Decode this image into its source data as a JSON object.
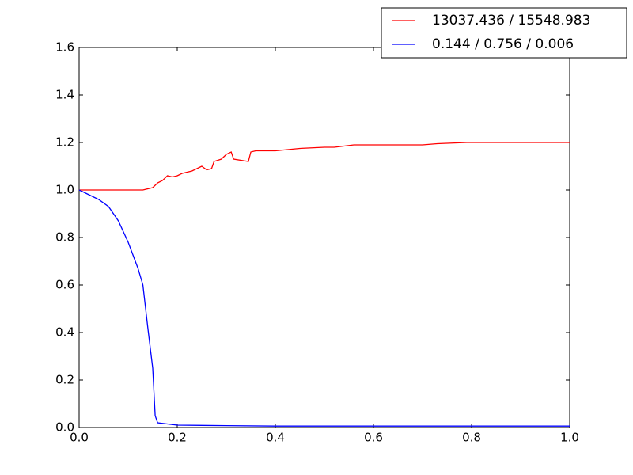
{
  "chart_data": {
    "type": "line",
    "xlim": [
      0,
      1
    ],
    "ylim": [
      0,
      1.6
    ],
    "xticks": [
      {
        "value": 0,
        "label": "0.0"
      },
      0.2,
      0.4,
      0.6,
      0.8,
      {
        "value": 1,
        "label": "1.0"
      }
    ],
    "yticks": [
      {
        "value": 0,
        "label": "0.0"
      },
      0.2,
      0.4,
      0.6,
      0.8,
      {
        "value": 1,
        "label": "1.0"
      },
      1.2,
      1.4,
      1.6
    ],
    "legend": "upper right",
    "series": [
      {
        "name": "13037.436 / 15548.983",
        "color": "#ff0000",
        "x": [
          0,
          0.13,
          0.15,
          0.16,
          0.17,
          0.18,
          0.19,
          0.2,
          0.21,
          0.23,
          0.24,
          0.25,
          0.26,
          0.27,
          0.275,
          0.29,
          0.3,
          0.31,
          0.315,
          0.345,
          0.35,
          0.36,
          0.4,
          0.45,
          0.5,
          0.52,
          0.56,
          0.7,
          0.73,
          0.79,
          0.85,
          1.0
        ],
        "values": [
          1.0,
          1.0,
          1.01,
          1.03,
          1.04,
          1.06,
          1.055,
          1.06,
          1.07,
          1.08,
          1.09,
          1.1,
          1.085,
          1.09,
          1.12,
          1.13,
          1.15,
          1.16,
          1.13,
          1.12,
          1.16,
          1.165,
          1.165,
          1.175,
          1.18,
          1.18,
          1.19,
          1.19,
          1.195,
          1.2,
          1.2,
          1.2
        ]
      },
      {
        "name": "0.144 / 0.756 / 0.006",
        "color": "#0000ff",
        "x": [
          0,
          0.02,
          0.04,
          0.06,
          0.08,
          0.1,
          0.12,
          0.13,
          0.14,
          0.15,
          0.155,
          0.16,
          0.2,
          0.3,
          0.4,
          1.0
        ],
        "values": [
          1.0,
          0.98,
          0.96,
          0.93,
          0.87,
          0.78,
          0.67,
          0.6,
          0.42,
          0.25,
          0.05,
          0.02,
          0.01,
          0.008,
          0.006,
          0.006
        ]
      }
    ]
  }
}
